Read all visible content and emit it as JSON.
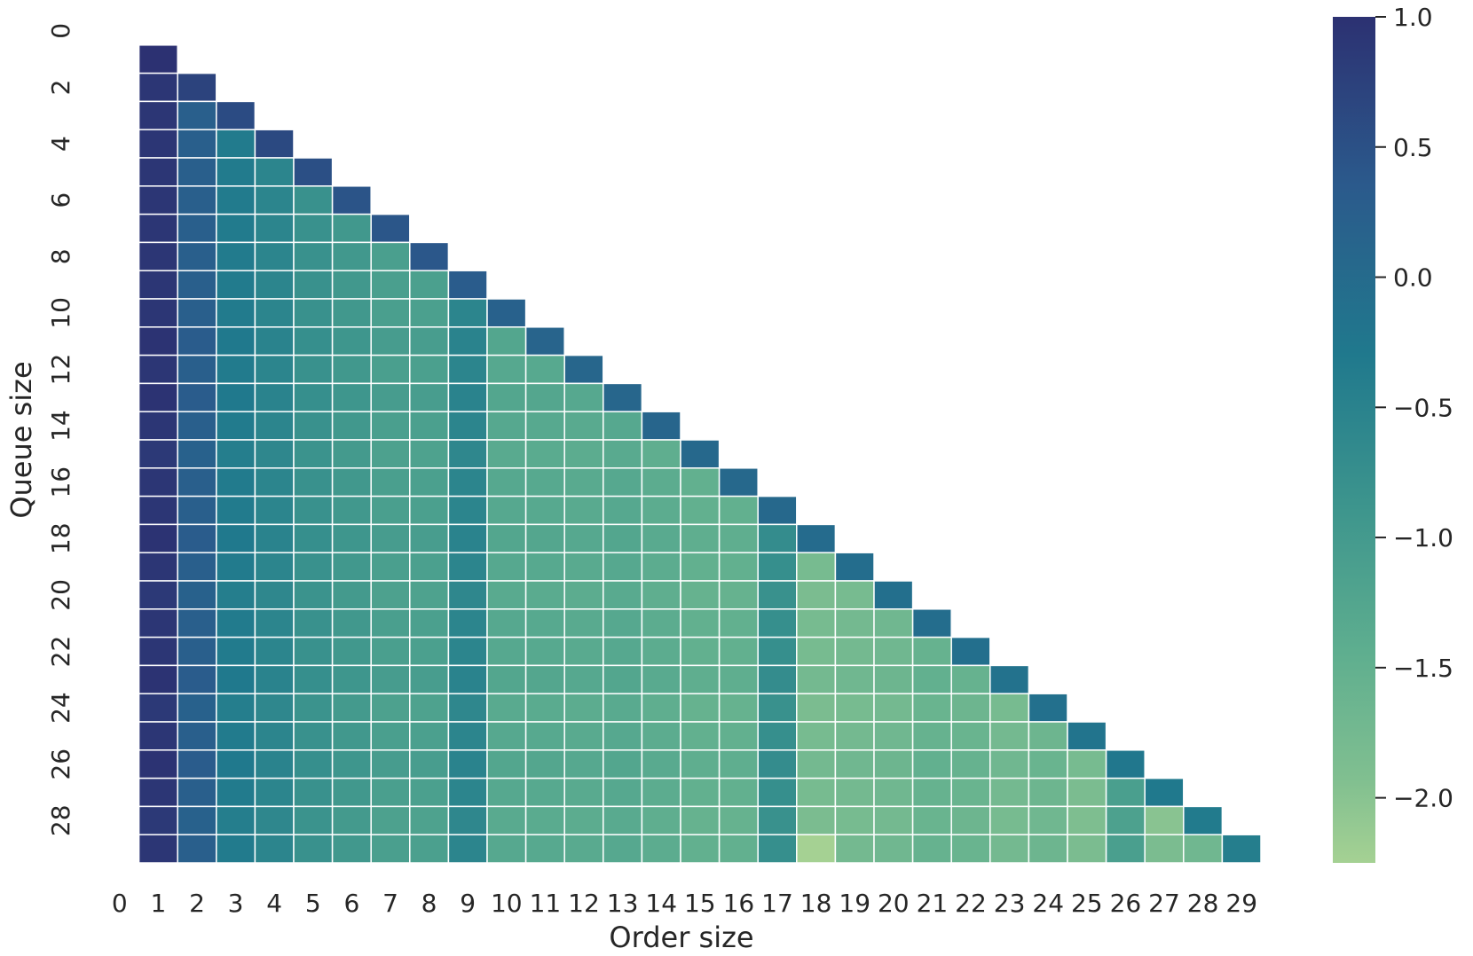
{
  "chart_data": {
    "type": "heatmap",
    "title": "",
    "xlabel": "Order size",
    "ylabel": "Queue size",
    "x_tick_labels": [
      "0",
      "1",
      "2",
      "3",
      "4",
      "5",
      "6",
      "7",
      "8",
      "9",
      "10",
      "11",
      "12",
      "13",
      "14",
      "15",
      "16",
      "17",
      "18",
      "19",
      "20",
      "21",
      "22",
      "23",
      "24",
      "25",
      "26",
      "27",
      "28",
      "29"
    ],
    "y_tick_labels": [
      "0",
      "2",
      "4",
      "6",
      "8",
      "10",
      "12",
      "14",
      "16",
      "18",
      "20",
      "22",
      "24",
      "26",
      "28"
    ],
    "rows": 30,
    "cols": 30,
    "mask": "upper triangle masked (row 0 and column 0 empty); cells shown where 1 <= col <= row",
    "colorbar": {
      "vmin": -2.25,
      "vmax": 1.0,
      "ticks": [
        1.0,
        0.5,
        0.0,
        -0.5,
        -1.0,
        -1.5,
        -2.0
      ],
      "tick_labels": [
        "1.0",
        "0.5",
        "0.0",
        "−0.5",
        "−1.0",
        "−1.5",
        "−2.0"
      ],
      "colormap": "crest (dark blue at high values to light green at low values)"
    },
    "col_base_values": [
      null,
      0.92,
      0.25,
      -0.35,
      -0.55,
      -0.8,
      -0.95,
      -1.1,
      -1.12,
      -0.55,
      -1.3,
      -1.32,
      -1.35,
      -1.3,
      -1.4,
      -1.5,
      -1.5,
      -0.75,
      -1.8,
      -1.75,
      -1.7,
      -1.55,
      -1.6,
      -1.75,
      -1.65,
      -1.85,
      -1.1,
      -1.95,
      -1.7,
      null
    ],
    "row_offsets": [
      0,
      0,
      0,
      0,
      0,
      0,
      0,
      0,
      0,
      0,
      0,
      0.05,
      0,
      0.05,
      0,
      -0.05,
      0,
      0,
      0.05,
      0,
      -0.05,
      0,
      0,
      0.05,
      -0.05,
      0,
      0.05,
      0,
      -0.05,
      0
    ],
    "diagonal_values": [
      null,
      1.0,
      0.72,
      0.58,
      0.62,
      0.52,
      0.45,
      0.42,
      0.4,
      0.3,
      0.2,
      0.15,
      0.1,
      0.1,
      0.12,
      0.05,
      0.05,
      0.05,
      0.0,
      -0.05,
      -0.1,
      -0.05,
      -0.1,
      -0.15,
      -0.12,
      -0.2,
      -0.25,
      -0.3,
      -0.35,
      -0.4
    ],
    "exceptions": [
      {
        "row": 29,
        "col": 18,
        "value": -2.25
      },
      {
        "row": 29,
        "col": 27,
        "value": -1.85
      }
    ]
  }
}
